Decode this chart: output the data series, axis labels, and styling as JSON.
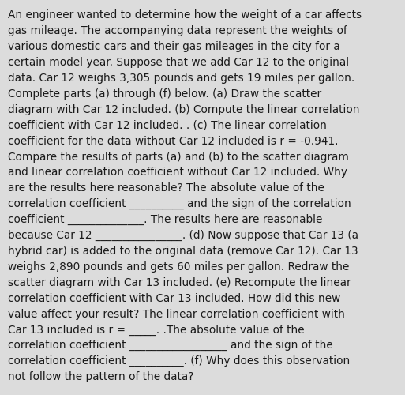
{
  "background_color": "#dcdcdc",
  "text_color": "#1a1a1a",
  "font_size": 9.8,
  "font_family": "DejaVu Sans",
  "lines": [
    "An engineer wanted to determine how the weight of a car affects",
    "gas mileage. The accompanying data represent the weights of",
    "various domestic cars and their gas mileages in the city for a",
    "certain model year. Suppose that we add Car 12 to the original",
    "data. Car 12 weighs 3,305 pounds and gets 19 miles per gallon.",
    "Complete parts (a) through (f) below. (a) Draw the scatter",
    "diagram with Car 12 included. (b) Compute the linear correlation",
    "coefficient with Car 12 included. . (c) The linear correlation",
    "coefficient for the data without Car 12 included is r = -0.941.",
    "Compare the results of parts (a) and (b) to the scatter diagram",
    "and linear correlation coefficient without Car 12 included. Why",
    "are the results here reasonable? The absolute value of the",
    "correlation coefficient __________ and the sign of the correlation",
    "coefficient ______________. The results here are reasonable",
    "because Car 12 ________________. (d) Now suppose that Car 13 (a",
    "hybrid car) is added to the original data (remove Car 12). Car 13",
    "weighs 2,890 pounds and gets 60 miles per gallon. Redraw the",
    "scatter diagram with Car 13 included. (e) Recompute the linear",
    "correlation coefficient with Car 13 included. How did this new",
    "value affect your result? The linear correlation coefficient with",
    "Car 13 included is r = _____. .The absolute value of the",
    "correlation coefficient __________________ and the sign of the",
    "correlation coefficient __________. (f) Why does this observation",
    "not follow the pattern of the data?"
  ]
}
